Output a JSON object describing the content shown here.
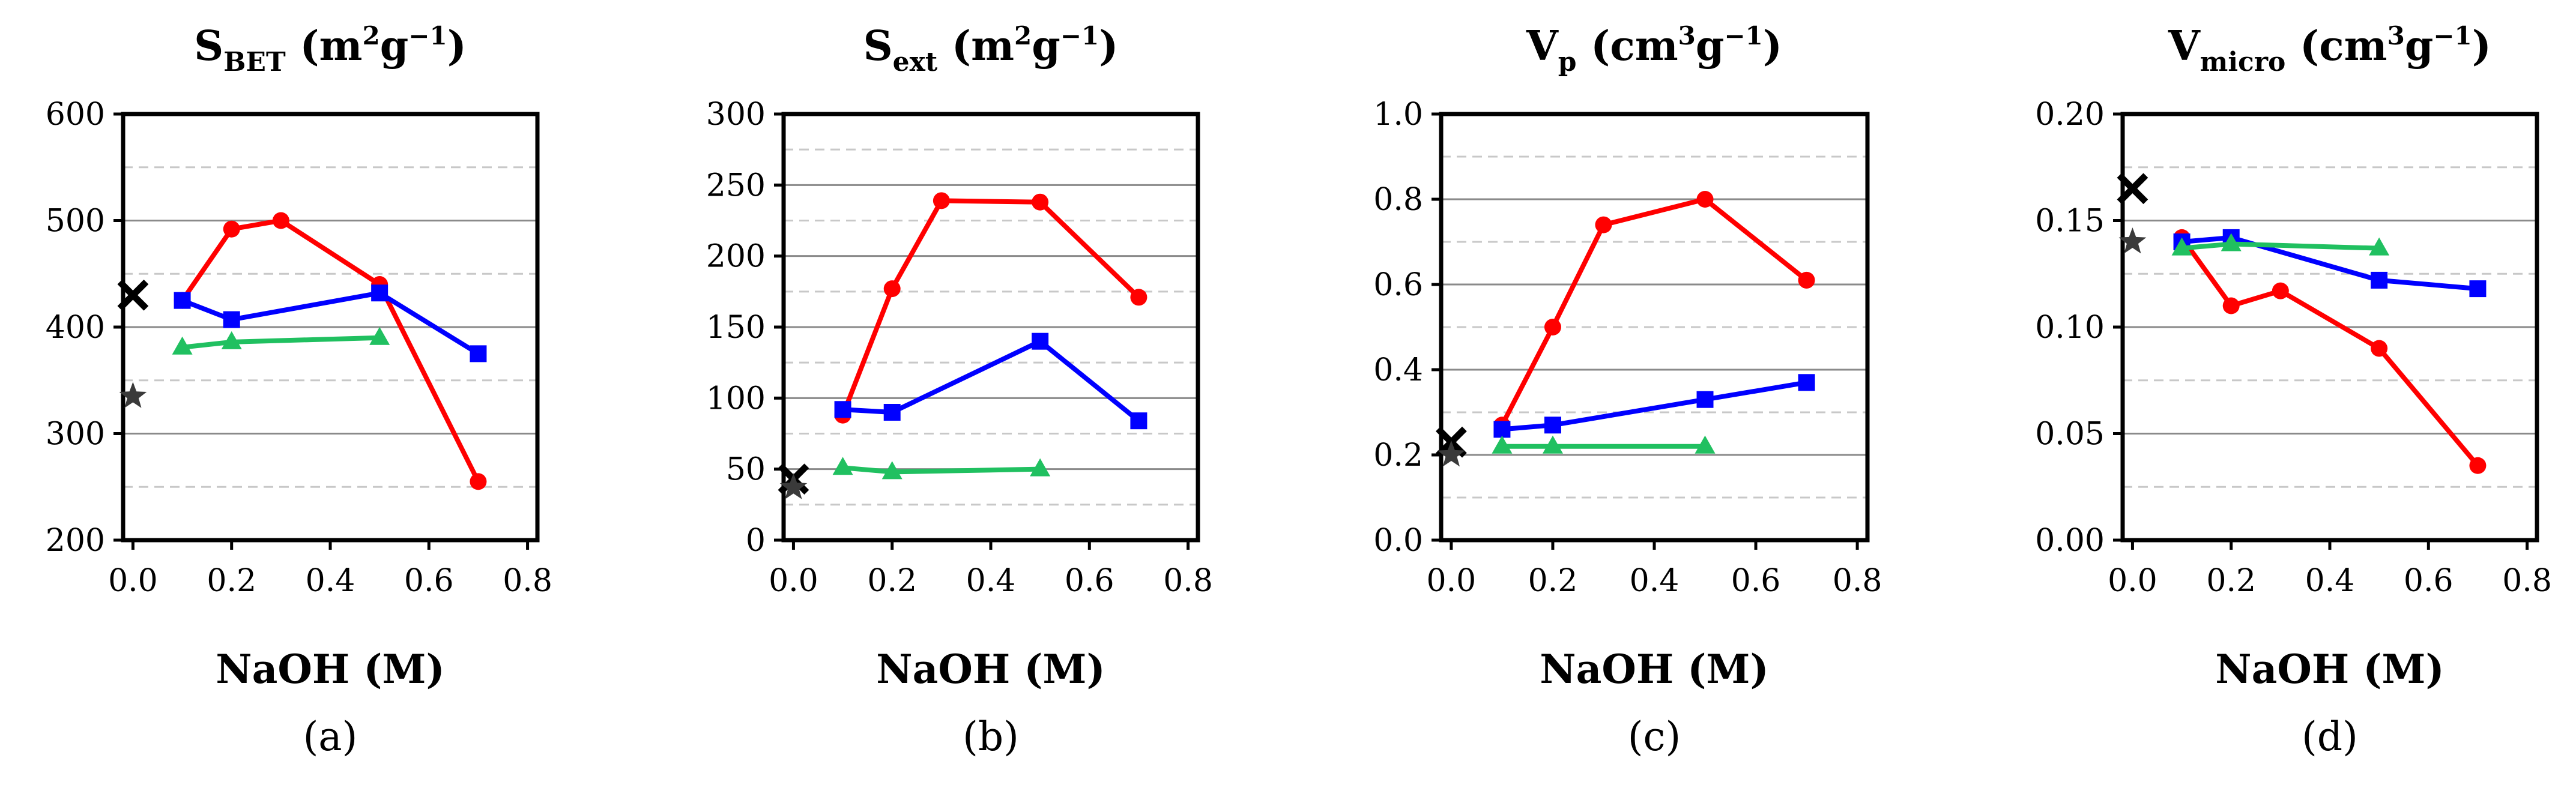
{
  "figure": {
    "colors": {
      "red": "#ff0000",
      "blue": "#0000ff",
      "green": "#20c060",
      "black": "#000000",
      "star": "#3a3a3a",
      "grid_major": "#8a8a8a",
      "grid_minor": "#c8c8c8"
    }
  },
  "chart_data": [
    {
      "type": "line",
      "panel_label": "(a)",
      "title": {
        "base": "S",
        "sub": "BET",
        "unit_open": " (m",
        "sup1": "2",
        "mid": "g",
        "sup2": "−1",
        "unit_close": ")"
      },
      "xlabel": "NaOH (M)",
      "ylabel": "",
      "xlim": [
        -0.02,
        0.82
      ],
      "ylim": [
        200,
        600
      ],
      "xticks": [
        0.0,
        0.2,
        0.4,
        0.6,
        0.8
      ],
      "xtick_labels": [
        "0.0",
        "0.2",
        "0.4",
        "0.6",
        "0.8"
      ],
      "yticks": [
        200,
        300,
        400,
        500,
        600
      ],
      "ytick_labels": [
        "200",
        "300",
        "400",
        "500",
        "600"
      ],
      "grid_major": [
        300,
        400,
        500
      ],
      "grid_minor": [
        250,
        350,
        450,
        550
      ],
      "series": [
        {
          "name": "red",
          "color_key": "red",
          "marker": "circle",
          "x": [
            0.1,
            0.2,
            0.3,
            0.5,
            0.7
          ],
          "y": [
            425,
            492,
            500,
            440,
            255
          ]
        },
        {
          "name": "blue",
          "color_key": "blue",
          "marker": "square",
          "x": [
            0.1,
            0.2,
            0.5,
            0.7
          ],
          "y": [
            425,
            407,
            432,
            375
          ]
        },
        {
          "name": "green",
          "color_key": "green",
          "marker": "triangle",
          "x": [
            0.1,
            0.2,
            0.5
          ],
          "y": [
            381,
            386,
            390
          ]
        }
      ],
      "reference_points": [
        {
          "name": "x-reference",
          "marker": "x",
          "color_key": "black",
          "x": 0.0,
          "y": 430
        },
        {
          "name": "star-reference",
          "marker": "star",
          "color_key": "star",
          "x": 0.0,
          "y": 335
        }
      ]
    },
    {
      "type": "line",
      "panel_label": "(b)",
      "title": {
        "base": "S",
        "sub": "ext",
        "unit_open": " (m",
        "sup1": "2",
        "mid": "g",
        "sup2": "−1",
        "unit_close": ")"
      },
      "xlabel": "NaOH (M)",
      "ylabel": "",
      "xlim": [
        -0.02,
        0.82
      ],
      "ylim": [
        0,
        300
      ],
      "xticks": [
        0.0,
        0.2,
        0.4,
        0.6,
        0.8
      ],
      "xtick_labels": [
        "0.0",
        "0.2",
        "0.4",
        "0.6",
        "0.8"
      ],
      "yticks": [
        0,
        50,
        100,
        150,
        200,
        250,
        300
      ],
      "ytick_labels": [
        "0",
        "50",
        "100",
        "150",
        "200",
        "250",
        "300"
      ],
      "grid_major": [
        50,
        100,
        150,
        200,
        250
      ],
      "grid_minor": [
        25,
        75,
        125,
        175,
        225,
        275
      ],
      "series": [
        {
          "name": "red",
          "color_key": "red",
          "marker": "circle",
          "x": [
            0.1,
            0.2,
            0.3,
            0.5,
            0.7
          ],
          "y": [
            88,
            177,
            239,
            238,
            171
          ]
        },
        {
          "name": "blue",
          "color_key": "blue",
          "marker": "square",
          "x": [
            0.1,
            0.2,
            0.5,
            0.7
          ],
          "y": [
            92,
            90,
            140,
            84
          ]
        },
        {
          "name": "green",
          "color_key": "green",
          "marker": "triangle",
          "x": [
            0.1,
            0.2,
            0.5
          ],
          "y": [
            51,
            48,
            50
          ]
        }
      ],
      "reference_points": [
        {
          "name": "x-reference",
          "marker": "x",
          "color_key": "black",
          "x": 0.0,
          "y": 43
        },
        {
          "name": "star-reference",
          "marker": "star",
          "color_key": "star",
          "x": 0.0,
          "y": 37
        }
      ]
    },
    {
      "type": "line",
      "panel_label": "(c)",
      "title": {
        "base": "V",
        "sub": "p",
        "unit_open": " (cm",
        "sup1": "3",
        "mid": "g",
        "sup2": "−1",
        "unit_close": ")"
      },
      "xlabel": "NaOH (M)",
      "ylabel": "",
      "xlim": [
        -0.02,
        0.82
      ],
      "ylim": [
        0,
        1.0
      ],
      "xticks": [
        0.0,
        0.2,
        0.4,
        0.6,
        0.8
      ],
      "xtick_labels": [
        "0.0",
        "0.2",
        "0.4",
        "0.6",
        "0.8"
      ],
      "yticks": [
        0.0,
        0.2,
        0.4,
        0.6,
        0.8,
        1.0
      ],
      "ytick_labels": [
        "0.0",
        "0.2",
        "0.4",
        "0.6",
        "0.8",
        "1.0"
      ],
      "grid_major": [
        0.2,
        0.4,
        0.6,
        0.8
      ],
      "grid_minor": [
        0.1,
        0.3,
        0.5,
        0.7,
        0.9
      ],
      "series": [
        {
          "name": "red",
          "color_key": "red",
          "marker": "circle",
          "x": [
            0.1,
            0.2,
            0.3,
            0.5,
            0.7
          ],
          "y": [
            0.27,
            0.5,
            0.74,
            0.8,
            0.61
          ]
        },
        {
          "name": "blue",
          "color_key": "blue",
          "marker": "square",
          "x": [
            0.1,
            0.2,
            0.5,
            0.7
          ],
          "y": [
            0.26,
            0.27,
            0.33,
            0.37
          ]
        },
        {
          "name": "green",
          "color_key": "green",
          "marker": "triangle",
          "x": [
            0.1,
            0.2,
            0.5
          ],
          "y": [
            0.22,
            0.22,
            0.22
          ]
        }
      ],
      "reference_points": [
        {
          "name": "x-reference",
          "marker": "x",
          "color_key": "black",
          "x": 0.0,
          "y": 0.23
        },
        {
          "name": "star-reference",
          "marker": "star",
          "color_key": "star",
          "x": 0.0,
          "y": 0.2
        }
      ]
    },
    {
      "type": "line",
      "panel_label": "(d)",
      "title": {
        "base": "V",
        "sub": "micro",
        "unit_open": " (cm",
        "sup1": "3",
        "mid": "g",
        "sup2": "−1",
        "unit_close": ")"
      },
      "xlabel": "NaOH (M)",
      "ylabel": "",
      "xlim": [
        -0.02,
        0.82
      ],
      "ylim": [
        0,
        0.2
      ],
      "xticks": [
        0.0,
        0.2,
        0.4,
        0.6,
        0.8
      ],
      "xtick_labels": [
        "0.0",
        "0.2",
        "0.4",
        "0.6",
        "0.8"
      ],
      "yticks": [
        0.0,
        0.05,
        0.1,
        0.15,
        0.2
      ],
      "ytick_labels": [
        "0.00",
        "0.05",
        "0.10",
        "0.15",
        "0.20"
      ],
      "grid_major": [
        0.05,
        0.1,
        0.15
      ],
      "grid_minor": [
        0.025,
        0.075,
        0.125,
        0.175
      ],
      "series": [
        {
          "name": "red",
          "color_key": "red",
          "marker": "circle",
          "x": [
            0.1,
            0.2,
            0.3,
            0.5,
            0.7
          ],
          "y": [
            0.142,
            0.11,
            0.117,
            0.09,
            0.035
          ]
        },
        {
          "name": "blue",
          "color_key": "blue",
          "marker": "square",
          "x": [
            0.1,
            0.2,
            0.5,
            0.7
          ],
          "y": [
            0.14,
            0.142,
            0.122,
            0.118
          ]
        },
        {
          "name": "green",
          "color_key": "green",
          "marker": "triangle",
          "x": [
            0.1,
            0.2,
            0.5
          ],
          "y": [
            0.137,
            0.139,
            0.137
          ]
        }
      ],
      "reference_points": [
        {
          "name": "x-reference",
          "marker": "x",
          "color_key": "black",
          "x": 0.0,
          "y": 0.165
        },
        {
          "name": "star-reference",
          "marker": "star",
          "color_key": "star",
          "x": 0.0,
          "y": 0.14
        }
      ]
    }
  ]
}
